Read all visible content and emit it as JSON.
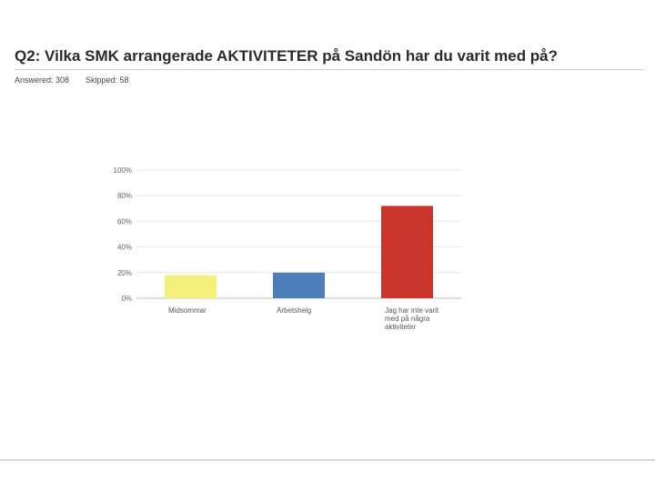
{
  "page": {
    "title": "Q2: Vilka SMK arrangerade AKTIVITETER på Sandön har du varit med på?",
    "answered": "Answered: 308",
    "skipped": "Skipped: 58"
  },
  "chart_data": {
    "type": "bar",
    "title": "",
    "xlabel": "",
    "ylabel": "",
    "ylim": [
      0,
      100
    ],
    "yticks": [
      "0%",
      "20%",
      "40%",
      "60%",
      "80%",
      "100%"
    ],
    "grid": true,
    "categories": [
      [
        "Midsommar"
      ],
      [
        "Arbetshelg"
      ],
      [
        "Jag har inte varit",
        "med på några",
        "aktiviteter"
      ]
    ],
    "values": [
      18,
      20,
      72
    ],
    "colors": [
      "#f5f07a",
      "#4e7eb8",
      "#c9352c"
    ]
  }
}
